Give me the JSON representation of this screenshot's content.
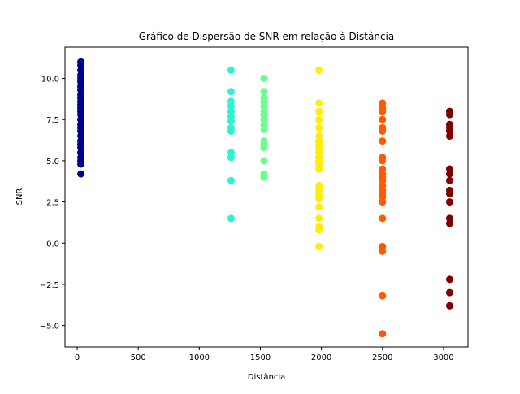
{
  "chart_data": {
    "type": "scatter",
    "title": "Gráfico de Dispersão de SNR em relação à Distância",
    "xlabel": "Distância",
    "ylabel": "SNR",
    "xlim": [
      -100,
      3200
    ],
    "ylim": [
      -6.3,
      11.9
    ],
    "xticks": [
      0,
      500,
      1000,
      1500,
      2000,
      2500,
      3000
    ],
    "yticks": [
      -5.0,
      -2.5,
      0.0,
      2.5,
      5.0,
      7.5,
      10.0
    ],
    "xtick_labels": [
      "0",
      "500",
      "1000",
      "1500",
      "2000",
      "2500",
      "3000"
    ],
    "ytick_labels": [
      "−5.0",
      "−2.5",
      "0.0",
      "2.5",
      "5.0",
      "7.5",
      "10.0"
    ],
    "grid": false,
    "legend": "none",
    "colormap": "jet",
    "groups": [
      {
        "x": 30,
        "color": "#00008f",
        "y": [
          11.0,
          10.8,
          10.5,
          10.2,
          10.0,
          9.8,
          9.5,
          9.3,
          9.0,
          8.8,
          8.6,
          8.4,
          8.2,
          8.0,
          7.8,
          7.5,
          7.2,
          7.0,
          6.8,
          6.5,
          6.2,
          6.0,
          5.8,
          5.5,
          5.2,
          5.0,
          4.8,
          4.2
        ]
      },
      {
        "x": 1260,
        "color": "#2af5d0",
        "y": [
          10.5,
          9.2,
          8.6,
          8.3,
          8.0,
          7.7,
          7.4,
          7.0,
          6.8,
          5.5,
          5.2,
          3.8,
          1.5
        ]
      },
      {
        "x": 1530,
        "color": "#6aff8c",
        "y": [
          10.0,
          9.2,
          8.8,
          8.6,
          8.3,
          8.0,
          7.8,
          7.5,
          7.2,
          6.9,
          6.2,
          6.0,
          5.8,
          5.0,
          4.2,
          4.0
        ]
      },
      {
        "x": 1980,
        "color": "#ffee00",
        "y": [
          10.5,
          8.5,
          8.0,
          7.5,
          7.0,
          6.5,
          6.2,
          6.0,
          5.8,
          5.5,
          5.2,
          5.0,
          4.8,
          4.5,
          3.5,
          3.2,
          2.9,
          2.7,
          2.2,
          1.5,
          1.0,
          0.8,
          -0.2
        ]
      },
      {
        "x": 2500,
        "color": "#ff5a00",
        "y": [
          8.5,
          8.2,
          8.0,
          7.5,
          7.0,
          6.8,
          6.2,
          5.2,
          5.0,
          4.5,
          4.2,
          4.0,
          3.8,
          3.5,
          3.2,
          3.0,
          2.8,
          2.5,
          1.5,
          -0.2,
          -0.5,
          -3.2,
          -5.5
        ]
      },
      {
        "x": 3050,
        "color": "#800000",
        "y": [
          8.0,
          7.8,
          7.2,
          7.0,
          6.8,
          6.5,
          4.5,
          4.2,
          3.8,
          3.2,
          3.0,
          2.5,
          1.5,
          1.2,
          -2.2,
          -3.0,
          -3.8
        ]
      }
    ]
  }
}
